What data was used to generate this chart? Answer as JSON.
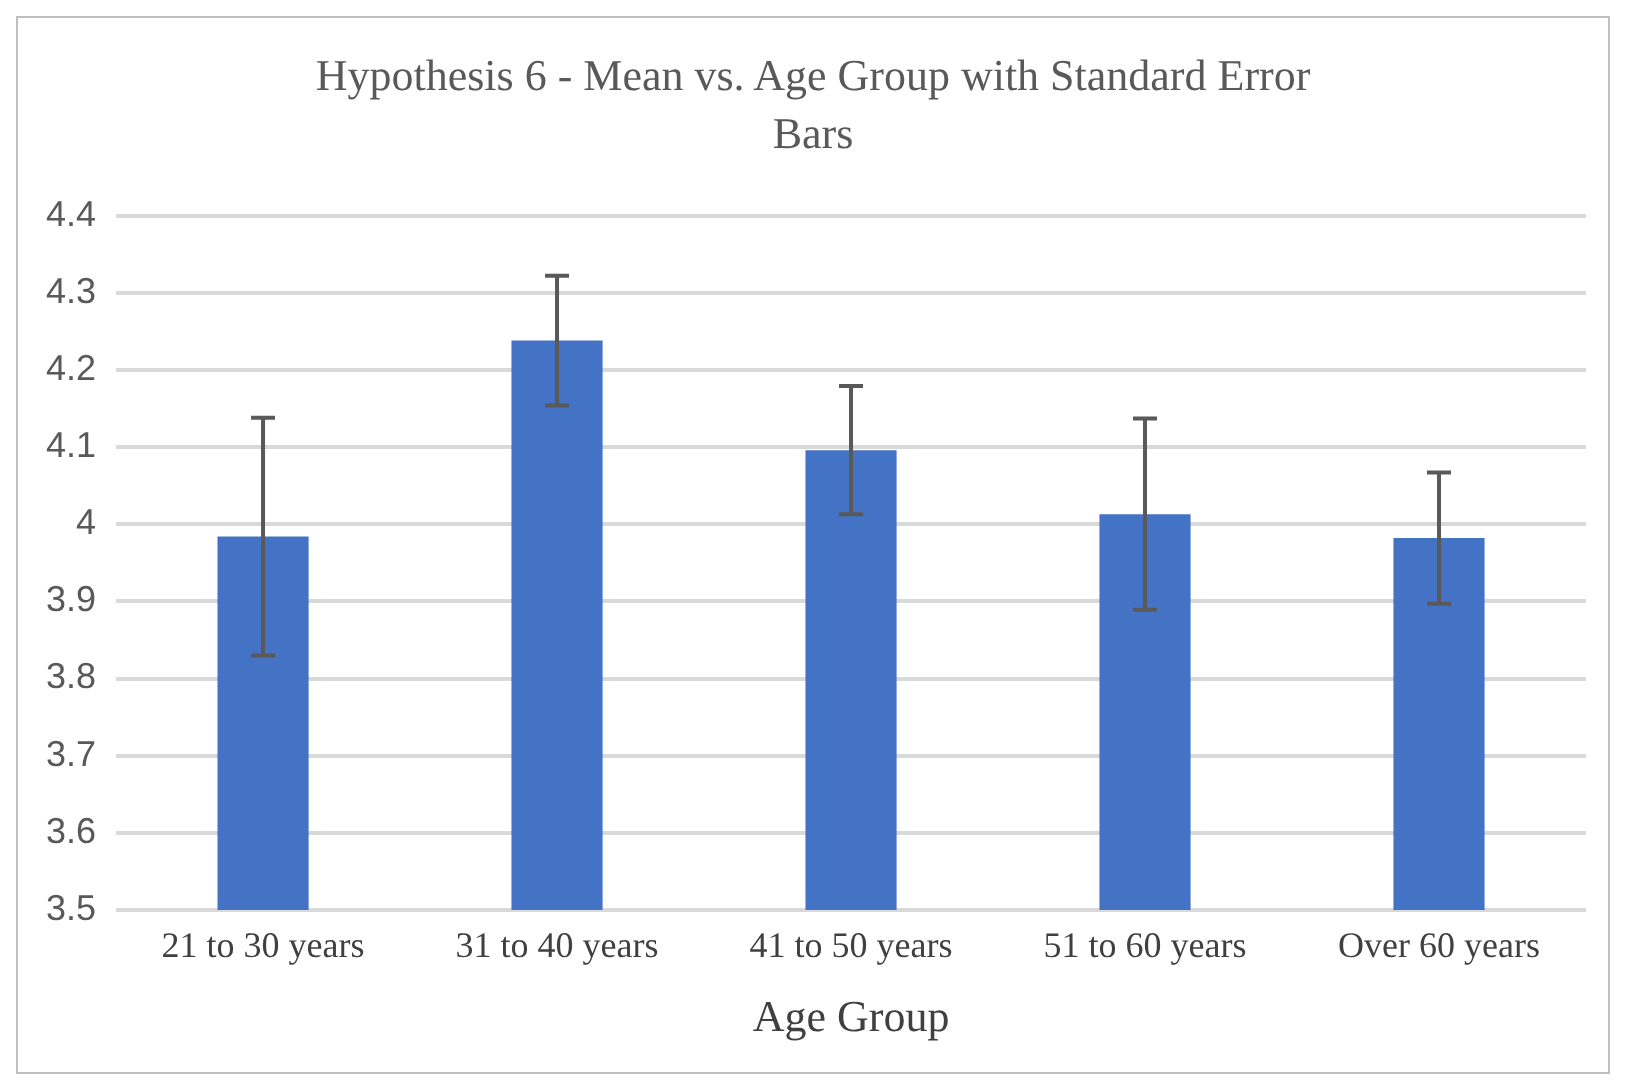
{
  "chart_data": {
    "type": "bar",
    "title": "Hypothesis 6 - Mean vs. Age Group with Standard Error Bars",
    "xlabel": "Age Group",
    "categories": [
      "21 to 30 years",
      "31 to 40 years",
      "41 to 50 years",
      "51 to 60 years",
      "Over 60 years"
    ],
    "values": [
      3.984,
      4.238,
      4.096,
      4.013,
      3.982
    ],
    "errors": [
      0.154,
      0.084,
      0.083,
      0.124,
      0.085
    ],
    "color": "#4472c4",
    "ylim": [
      3.5,
      4.4
    ],
    "yticks": [
      3.5,
      3.6,
      3.7,
      3.8,
      3.9,
      4,
      4.1,
      4.2,
      4.3,
      4.4
    ],
    "grid": "y",
    "legend": false
  }
}
